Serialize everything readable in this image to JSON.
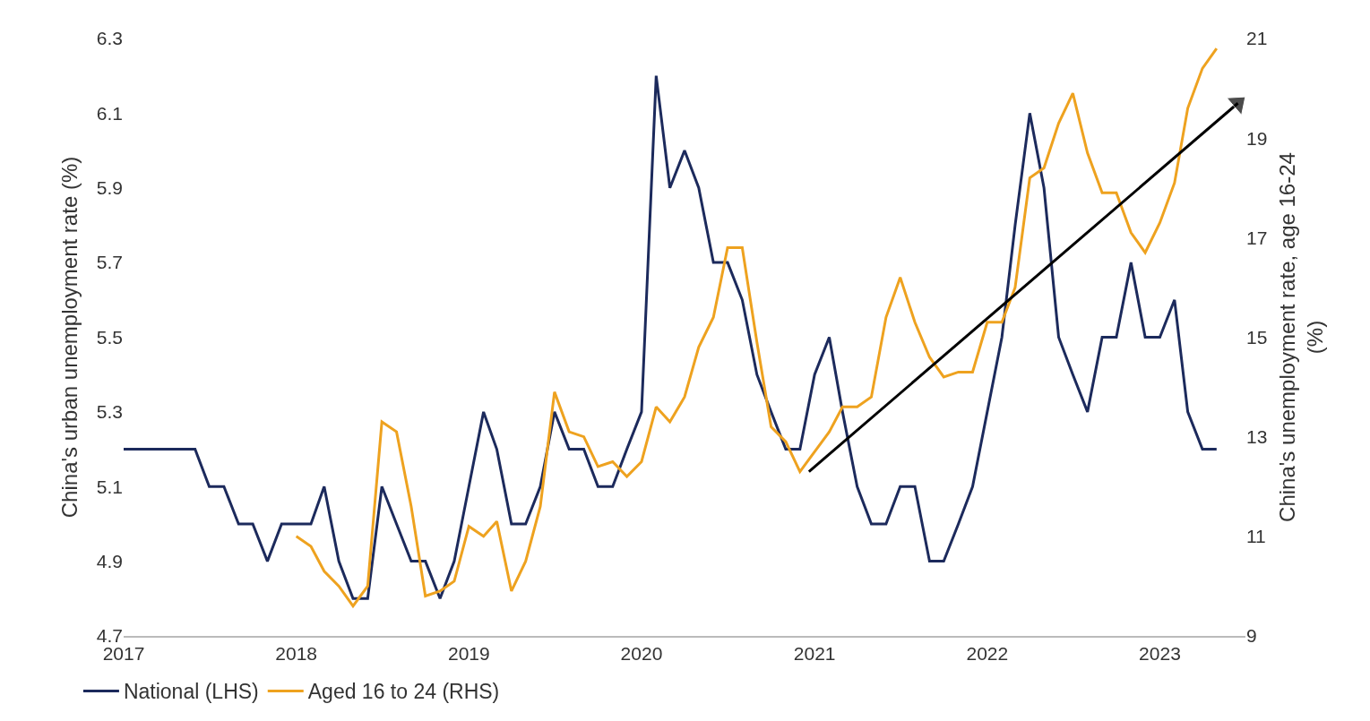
{
  "chart_data": {
    "type": "line",
    "ylabel": "China's urban unemployment rate (%)",
    "y2label": "China's unemployment rate, age 16-24\n(%)",
    "xlim": [
      "2017-01-01",
      "2023-07-01"
    ],
    "xticks": [
      {
        "value": "2017-01-01",
        "label": "2017"
      },
      {
        "value": "2018-01-01",
        "label": "2018"
      },
      {
        "value": "2019-01-01",
        "label": "2019"
      },
      {
        "value": "2020-01-01",
        "label": "2020"
      },
      {
        "value": "2021-01-01",
        "label": "2021"
      },
      {
        "value": "2022-01-01",
        "label": "2022"
      },
      {
        "value": "2023-01-01",
        "label": "2023"
      }
    ],
    "ylim": [
      4.7,
      6.3
    ],
    "yticks": [
      4.7,
      4.9,
      5.1,
      5.3,
      5.5,
      5.7,
      5.9,
      6.1,
      6.3
    ],
    "y2lim": [
      9,
      21
    ],
    "y2ticks": [
      9,
      11,
      13,
      15,
      17,
      19,
      21
    ],
    "legend": "bottom left",
    "marker": "none",
    "line_style": "solid",
    "series": [
      {
        "name": "National (LHS)",
        "color": "#1c2a5c",
        "x": [
          "2017-01",
          "2017-02",
          "2017-03",
          "2017-04",
          "2017-05",
          "2017-06",
          "2017-07",
          "2017-08",
          "2017-09",
          "2017-10",
          "2017-11",
          "2017-12",
          "2018-01",
          "2018-02",
          "2018-03",
          "2018-04",
          "2018-05",
          "2018-06",
          "2018-07",
          "2018-08",
          "2018-09",
          "2018-10",
          "2018-11",
          "2018-12",
          "2019-01",
          "2019-02",
          "2019-03",
          "2019-04",
          "2019-05",
          "2019-06",
          "2019-07",
          "2019-08",
          "2019-09",
          "2019-10",
          "2019-11",
          "2019-12",
          "2020-01",
          "2020-02",
          "2020-03",
          "2020-04",
          "2020-05",
          "2020-06",
          "2020-07",
          "2020-08",
          "2020-09",
          "2020-10",
          "2020-11",
          "2020-12",
          "2021-01",
          "2021-02",
          "2021-03",
          "2021-04",
          "2021-05",
          "2021-06",
          "2021-07",
          "2021-08",
          "2021-09",
          "2021-10",
          "2021-11",
          "2021-12",
          "2022-01",
          "2022-02",
          "2022-03",
          "2022-04",
          "2022-05",
          "2022-06",
          "2022-07",
          "2022-08",
          "2022-09",
          "2022-10",
          "2022-11",
          "2022-12",
          "2023-01",
          "2023-02",
          "2023-03",
          "2023-04",
          "2023-05"
        ],
        "values": [
          5.2,
          5.2,
          5.2,
          5.2,
          5.2,
          5.2,
          5.1,
          5.1,
          5.0,
          5.0,
          4.9,
          5.0,
          5.0,
          5.0,
          5.1,
          4.9,
          4.8,
          4.8,
          5.1,
          5.0,
          4.9,
          4.9,
          4.8,
          4.9,
          5.1,
          5.3,
          5.2,
          5.0,
          5.0,
          5.1,
          5.3,
          5.2,
          5.2,
          5.1,
          5.1,
          5.2,
          5.3,
          6.2,
          5.9,
          6.0,
          5.9,
          5.7,
          5.7,
          5.6,
          5.4,
          5.3,
          5.2,
          5.2,
          5.4,
          5.5,
          5.3,
          5.1,
          5.0,
          5.0,
          5.1,
          5.1,
          4.9,
          4.9,
          5.0,
          5.1,
          5.3,
          5.5,
          5.8,
          6.1,
          5.9,
          5.5,
          5.4,
          5.3,
          5.5,
          5.5,
          5.7,
          5.5,
          5.5,
          5.6,
          5.3,
          5.2,
          5.2
        ]
      },
      {
        "name": "Aged 16 to 24 (RHS)",
        "color": "#eea21f",
        "axis": "y2",
        "x": [
          "2018-01",
          "2018-02",
          "2018-03",
          "2018-04",
          "2018-05",
          "2018-06",
          "2018-07",
          "2018-08",
          "2018-09",
          "2018-10",
          "2018-11",
          "2018-12",
          "2019-01",
          "2019-02",
          "2019-03",
          "2019-04",
          "2019-05",
          "2019-06",
          "2019-07",
          "2019-08",
          "2019-09",
          "2019-10",
          "2019-11",
          "2019-12",
          "2020-01",
          "2020-02",
          "2020-03",
          "2020-04",
          "2020-05",
          "2020-06",
          "2020-07",
          "2020-08",
          "2020-09",
          "2020-10",
          "2020-11",
          "2020-12",
          "2021-01",
          "2021-02",
          "2021-03",
          "2021-04",
          "2021-05",
          "2021-06",
          "2021-07",
          "2021-08",
          "2021-09",
          "2021-10",
          "2021-11",
          "2021-12",
          "2022-01",
          "2022-02",
          "2022-03",
          "2022-04",
          "2022-05",
          "2022-06",
          "2022-07",
          "2022-08",
          "2022-09",
          "2022-10",
          "2022-11",
          "2022-12",
          "2023-01",
          "2023-02",
          "2023-03",
          "2023-04",
          "2023-05"
        ],
        "values": [
          11.0,
          10.8,
          10.3,
          10.0,
          9.6,
          10.0,
          13.3,
          13.1,
          11.6,
          9.8,
          9.9,
          10.1,
          11.2,
          11.0,
          11.3,
          9.9,
          10.5,
          11.6,
          13.9,
          13.1,
          13.0,
          12.4,
          12.5,
          12.2,
          12.5,
          13.6,
          13.3,
          13.8,
          14.8,
          15.4,
          16.8,
          16.8,
          14.9,
          13.2,
          12.9,
          12.3,
          12.7,
          13.1,
          13.6,
          13.6,
          13.8,
          15.4,
          16.2,
          15.3,
          14.6,
          14.2,
          14.3,
          14.3,
          15.3,
          15.3,
          16.0,
          18.2,
          18.4,
          19.3,
          19.9,
          18.7,
          17.9,
          17.9,
          17.1,
          16.7,
          17.3,
          18.1,
          19.6,
          20.4,
          20.8
        ]
      },
      {
        "type": "line",
        "color": "#000000",
        "axis": "y2",
        "marker": "triangle",
        "x": [
          "2020-12-20",
          "2023-06-15"
        ],
        "values": [
          12.3,
          19.7
        ]
      }
    ]
  }
}
